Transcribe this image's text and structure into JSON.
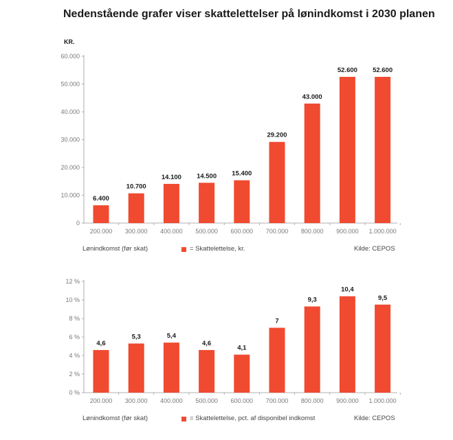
{
  "title": "Nedenstående grafer viser skattelettelser på lønindkomst i 2030 planen",
  "colors": {
    "bar": "#f04a30",
    "axis": "#999999",
    "tick": "#777777",
    "label": "#1a1a1a"
  },
  "chart_data": [
    {
      "type": "bar",
      "unit_label": "KR.",
      "categories": [
        "200.000",
        "300.000",
        "400.000",
        "500.000",
        "600.000",
        "700.000",
        "800.000",
        "900.000",
        "1.000.000"
      ],
      "values": [
        6400,
        10700,
        14100,
        14500,
        15400,
        29200,
        43000,
        52600,
        52600
      ],
      "value_labels": [
        "6.400",
        "10.700",
        "14.100",
        "14.500",
        "15.400",
        "29.200",
        "43.000",
        "52.600",
        "52.600"
      ],
      "yticks": [
        0,
        10000,
        20000,
        30000,
        40000,
        50000,
        60000
      ],
      "ytick_labels": [
        "0",
        "10.000",
        "20.000",
        "30.000",
        "40.000",
        "50.000",
        "60.000"
      ],
      "ylim": [
        0,
        60000
      ],
      "xlabel": "Lønindkomst (før skat)",
      "legend": "= Skattelettelse, kr.",
      "source": "Kilde: CEPOS",
      "grid": false
    },
    {
      "type": "bar",
      "categories": [
        "200.000",
        "300.000",
        "400.000",
        "500.000",
        "600.000",
        "700.000",
        "800.000",
        "900.000",
        "1.000.000"
      ],
      "values": [
        4.6,
        5.3,
        5.4,
        4.6,
        4.1,
        7,
        9.3,
        10.4,
        9.5
      ],
      "value_labels": [
        "4,6",
        "5,3",
        "5,4",
        "4,6",
        "4,1",
        "7",
        "9,3",
        "10,4",
        "9,5"
      ],
      "yticks": [
        0,
        2,
        4,
        6,
        8,
        10,
        12
      ],
      "ytick_labels": [
        "0 %",
        "2 %",
        "4 %",
        "6 %",
        "8 %",
        "10 %",
        "12 %"
      ],
      "ylim": [
        0,
        12
      ],
      "xlabel": "Lønindkomst (før skat)",
      "legend": "= Skattelettelse, pct. af disponibel indkomst",
      "source": "Kilde: CEPOS",
      "grid": false
    }
  ]
}
